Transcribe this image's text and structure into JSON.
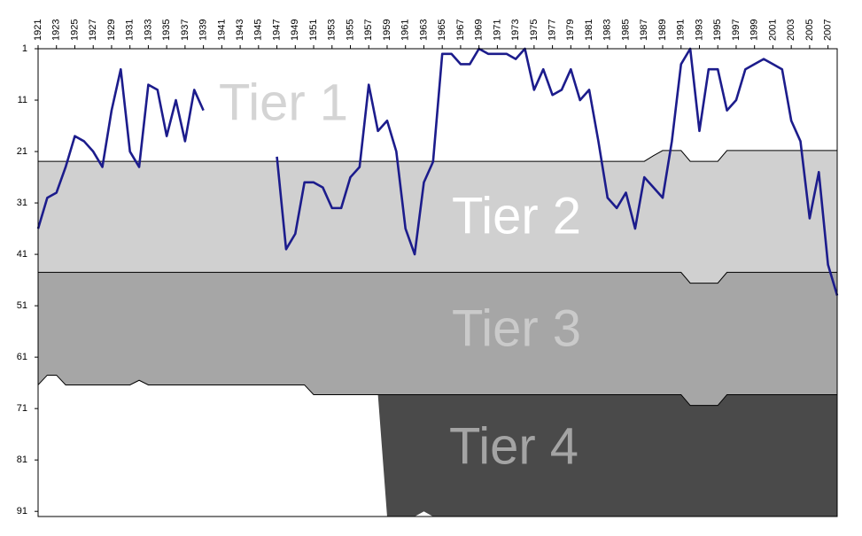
{
  "chart_data": {
    "type": "line",
    "x": [
      1921,
      1922,
      1923,
      1924,
      1925,
      1926,
      1927,
      1928,
      1929,
      1930,
      1931,
      1932,
      1933,
      1934,
      1935,
      1936,
      1937,
      1938,
      1939,
      1940,
      1941,
      1942,
      1943,
      1944,
      1945,
      1946,
      1947,
      1948,
      1949,
      1950,
      1951,
      1952,
      1953,
      1954,
      1955,
      1956,
      1957,
      1958,
      1959,
      1960,
      1961,
      1962,
      1963,
      1964,
      1965,
      1966,
      1967,
      1968,
      1969,
      1970,
      1971,
      1972,
      1973,
      1974,
      1975,
      1976,
      1977,
      1978,
      1979,
      1980,
      1981,
      1982,
      1983,
      1984,
      1985,
      1986,
      1987,
      1988,
      1989,
      1990,
      1991,
      1992,
      1993,
      1994,
      1995,
      1996,
      1997,
      1998,
      1999,
      2000,
      2001,
      2002,
      2003,
      2004,
      2005,
      2006,
      2007,
      2008
    ],
    "series": [
      {
        "color": "#1c1c8c",
        "values": [
          36,
          30,
          29,
          24,
          18,
          19,
          21,
          24,
          13,
          5,
          21,
          24,
          8,
          9,
          18,
          11,
          19,
          9,
          13,
          null,
          null,
          null,
          null,
          null,
          null,
          null,
          22,
          40,
          37,
          27,
          27,
          28,
          32,
          32,
          26,
          24,
          8,
          17,
          15,
          21,
          36,
          41,
          27,
          23,
          2,
          2,
          4,
          4,
          1,
          2,
          2,
          2,
          3,
          1,
          9,
          5,
          10,
          9,
          5,
          11,
          9,
          19,
          30,
          32,
          29,
          36,
          26,
          28,
          30,
          19,
          4,
          1,
          17,
          5,
          5,
          13,
          11,
          5,
          4,
          3,
          4,
          5,
          15,
          19,
          34,
          25,
          43,
          49
        ]
      }
    ],
    "bands": [
      {
        "name": "Tier 1",
        "color": "#ffffff",
        "label_color": "#d4d4d4",
        "values": [
          22.9,
          22.9,
          22.9,
          22.9,
          22.9,
          22.9,
          22.9,
          22.9,
          22.9,
          22.9,
          22.9,
          22.9,
          22.9,
          22.9,
          22.9,
          22.9,
          22.9,
          22.9,
          22.9,
          22.9,
          22.9,
          22.9,
          22.9,
          22.9,
          22.9,
          22.9,
          22.9,
          22.9,
          22.9,
          22.9,
          22.9,
          22.9,
          22.9,
          22.9,
          22.9,
          22.9,
          22.9,
          22.9,
          22.9,
          22.9,
          22.9,
          22.9,
          22.9,
          22.9,
          22.9,
          22.9,
          22.9,
          22.9,
          22.9,
          22.9,
          22.9,
          22.9,
          22.9,
          22.9,
          22.9,
          22.9,
          22.9,
          22.9,
          22.9,
          22.9,
          22.9,
          22.9,
          22.9,
          22.9,
          22.9,
          22.9,
          22.9,
          21.8,
          20.8,
          20.8,
          20.8,
          22.9,
          22.9,
          22.9,
          22.9,
          20.8,
          20.8,
          20.8,
          20.8,
          20.8,
          20.8,
          20.8,
          20.8,
          20.8,
          20.8,
          20.8,
          20.8,
          20.8
        ]
      },
      {
        "name": "Tier 2",
        "color": "#d0d0d0",
        "label_color": "#ffffff",
        "values": [
          44.5,
          44.5,
          44.5,
          44.5,
          44.5,
          44.5,
          44.5,
          44.5,
          44.5,
          44.5,
          44.5,
          44.5,
          44.5,
          44.5,
          44.5,
          44.5,
          44.5,
          44.5,
          44.5,
          44.5,
          44.5,
          44.5,
          44.5,
          44.5,
          44.5,
          44.5,
          44.5,
          44.5,
          44.5,
          44.5,
          44.5,
          44.5,
          44.5,
          44.5,
          44.5,
          44.5,
          44.5,
          44.5,
          44.5,
          44.5,
          44.5,
          44.5,
          44.5,
          44.5,
          44.5,
          44.5,
          44.5,
          44.5,
          44.5,
          44.5,
          44.5,
          44.5,
          44.5,
          44.5,
          44.5,
          44.5,
          44.5,
          44.5,
          44.5,
          44.5,
          44.5,
          44.5,
          44.5,
          44.5,
          44.5,
          44.5,
          44.5,
          44.5,
          44.5,
          44.5,
          44.5,
          46.6,
          46.6,
          46.6,
          46.6,
          44.5,
          44.5,
          44.5,
          44.5,
          44.5,
          44.5,
          44.5,
          44.5,
          44.5,
          44.5,
          44.5,
          44.5,
          44.5
        ]
      },
      {
        "name": "Tier 3",
        "color": "#a6a6a6",
        "label_color": "#cacaca",
        "values": [
          66.4,
          64.5,
          64.5,
          66.4,
          66.4,
          66.4,
          66.4,
          66.4,
          66.4,
          66.4,
          66.4,
          65.5,
          66.4,
          66.4,
          66.4,
          66.4,
          66.4,
          66.4,
          66.4,
          66.4,
          66.4,
          66.4,
          66.4,
          66.4,
          66.4,
          66.4,
          66.4,
          66.4,
          66.4,
          66.4,
          68.3,
          68.3,
          68.3,
          68.3,
          68.3,
          68.3,
          68.3,
          68.3,
          68.3,
          68.3,
          68.3,
          68.3,
          68.3,
          68.3,
          68.3,
          68.3,
          68.3,
          68.3,
          68.3,
          68.3,
          68.3,
          68.3,
          68.3,
          68.3,
          68.3,
          68.3,
          68.3,
          68.3,
          68.3,
          68.3,
          68.3,
          68.3,
          68.3,
          68.3,
          68.3,
          68.3,
          68.3,
          68.3,
          68.3,
          68.3,
          68.3,
          70.4,
          70.4,
          70.4,
          70.4,
          68.3,
          68.3,
          68.3,
          68.3,
          68.3,
          68.3,
          68.3,
          68.3,
          68.3,
          68.3,
          68.3,
          68.3,
          68.3
        ]
      },
      {
        "name": "Tier 4",
        "color": "#4a4a4a",
        "label_color": "#a4a4a4",
        "values": [
          null,
          null,
          null,
          null,
          null,
          null,
          null,
          null,
          null,
          null,
          null,
          null,
          null,
          null,
          null,
          null,
          null,
          null,
          null,
          null,
          null,
          null,
          null,
          null,
          null,
          null,
          null,
          null,
          null,
          null,
          null,
          null,
          null,
          null,
          null,
          null,
          null,
          68.3,
          92,
          92,
          92,
          92,
          91,
          92,
          92,
          92,
          92,
          92,
          92,
          92,
          92,
          92,
          92,
          92,
          92,
          92,
          92,
          92,
          92,
          92,
          92,
          92,
          92,
          92,
          92,
          92,
          92,
          92,
          92,
          92,
          92,
          92,
          92,
          92,
          92,
          92,
          92,
          92,
          92,
          92,
          92,
          92,
          92,
          92,
          92,
          92,
          92,
          92
        ]
      }
    ],
    "xlim": [
      1921,
      2008
    ],
    "xticks": [
      1921,
      1923,
      1925,
      1927,
      1929,
      1931,
      1933,
      1935,
      1937,
      1939,
      1941,
      1943,
      1945,
      1947,
      1949,
      1951,
      1953,
      1955,
      1957,
      1959,
      1961,
      1963,
      1965,
      1967,
      1969,
      1971,
      1973,
      1975,
      1977,
      1979,
      1981,
      1983,
      1985,
      1987,
      1989,
      1991,
      1993,
      1995,
      1997,
      1999,
      2001,
      2003,
      2005,
      2007
    ],
    "ylim": [
      1,
      92
    ],
    "yticks": [
      1,
      11,
      21,
      31,
      41,
      51,
      61,
      71,
      81,
      91
    ],
    "y_inverted": true
  }
}
